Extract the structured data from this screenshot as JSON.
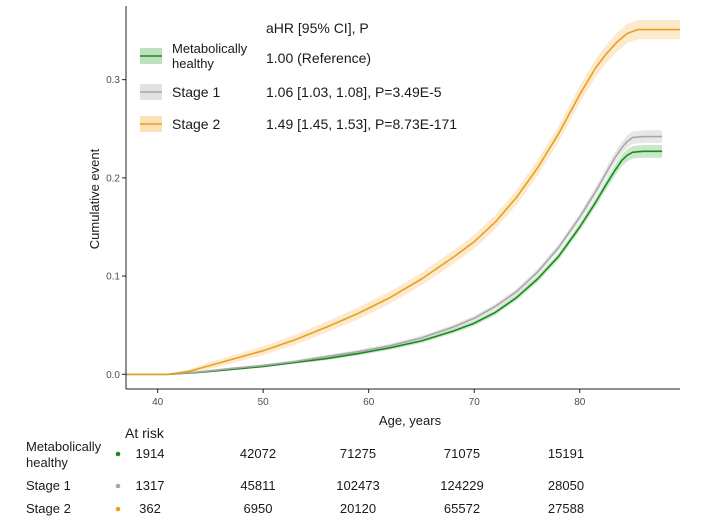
{
  "chart_data": {
    "type": "line",
    "subtype": "cumulative incidence",
    "xlabel": "Age, years",
    "ylabel": "Cumulative event",
    "xlim": [
      37,
      89.5
    ],
    "ylim": [
      -0.015,
      0.375
    ],
    "x_ticks": [
      40,
      50,
      60,
      70,
      80
    ],
    "y_ticks": [
      0.0,
      0.1,
      0.2,
      0.3
    ],
    "x_tick_labels": [
      "40",
      "50",
      "60",
      "70",
      "80"
    ],
    "y_tick_labels": [
      "0.0",
      "0.1",
      "0.2",
      "0.3"
    ],
    "grid": false,
    "legend": {
      "position": "top-left",
      "header": "aHR [95% CI], P",
      "entries": [
        {
          "name_line1": "Metabolically",
          "name_line2": "healthy",
          "ahr": "1.00 (Reference)"
        },
        {
          "name_line1": "Stage 1",
          "name_line2": "",
          "ahr": "1.06 [1.03, 1.08], P=3.49E-5"
        },
        {
          "name_line1": "Stage 2",
          "name_line2": "",
          "ahr": "1.49 [1.45, 1.53], P=8.73E-171"
        }
      ]
    },
    "series": [
      {
        "name": "Metabolically healthy",
        "color": "#1a8a1a",
        "band_color": "#9fd49f",
        "x": [
          37,
          41,
          44,
          47,
          50,
          53,
          56,
          59,
          62,
          65,
          68,
          70,
          72,
          74,
          76,
          78,
          80,
          81.5,
          82.5,
          83.3,
          84,
          84.5,
          85,
          86,
          87.8
        ],
        "values": [
          0,
          0,
          0.002,
          0.005,
          0.008,
          0.012,
          0.016,
          0.021,
          0.027,
          0.034,
          0.044,
          0.052,
          0.063,
          0.078,
          0.097,
          0.12,
          0.15,
          0.175,
          0.193,
          0.207,
          0.218,
          0.223,
          0.226,
          0.227,
          0.227
        ],
        "ci_halfwidth": [
          0,
          0,
          0.0006,
          0.001,
          0.0012,
          0.0014,
          0.0016,
          0.0018,
          0.002,
          0.0022,
          0.0024,
          0.0026,
          0.0028,
          0.003,
          0.0032,
          0.0035,
          0.004,
          0.0045,
          0.005,
          0.0055,
          0.006,
          0.0062,
          0.0064,
          0.0065,
          0.0065
        ]
      },
      {
        "name": "Stage 1",
        "color": "#a8a8a8",
        "band_color": "#d4d4d4",
        "x": [
          37,
          41,
          44,
          47,
          50,
          53,
          56,
          59,
          62,
          65,
          68,
          70,
          72,
          74,
          76,
          78,
          80,
          81.5,
          82.5,
          83.3,
          84,
          84.5,
          85,
          86,
          87.8
        ],
        "values": [
          0,
          0,
          0.0025,
          0.006,
          0.009,
          0.013,
          0.018,
          0.023,
          0.029,
          0.037,
          0.048,
          0.057,
          0.069,
          0.084,
          0.104,
          0.129,
          0.16,
          0.186,
          0.205,
          0.22,
          0.231,
          0.237,
          0.241,
          0.242,
          0.242
        ],
        "ci_halfwidth": [
          0,
          0,
          0.0006,
          0.001,
          0.0012,
          0.0014,
          0.0016,
          0.0018,
          0.002,
          0.0022,
          0.0024,
          0.0026,
          0.0028,
          0.003,
          0.0032,
          0.0035,
          0.004,
          0.0045,
          0.005,
          0.0055,
          0.006,
          0.0062,
          0.0064,
          0.0065,
          0.0065
        ]
      },
      {
        "name": "Stage 2",
        "color": "#e8a020",
        "band_color": "#fbd9a4",
        "x": [
          37,
          41,
          43,
          45,
          47,
          50,
          53,
          56,
          59,
          62,
          65,
          68,
          70,
          72,
          74,
          76,
          78,
          80,
          81.5,
          82.5,
          83.5,
          84.5,
          85.5,
          87,
          89.5
        ],
        "values": [
          0,
          0,
          0.003,
          0.009,
          0.015,
          0.024,
          0.035,
          0.048,
          0.062,
          0.078,
          0.097,
          0.119,
          0.135,
          0.155,
          0.18,
          0.21,
          0.245,
          0.285,
          0.312,
          0.326,
          0.338,
          0.347,
          0.351,
          0.351,
          0.351
        ],
        "ci_halfwidth": [
          0,
          0,
          0.002,
          0.0035,
          0.004,
          0.0045,
          0.005,
          0.0055,
          0.006,
          0.0062,
          0.0065,
          0.0068,
          0.007,
          0.0072,
          0.0075,
          0.0078,
          0.008,
          0.0085,
          0.009,
          0.0092,
          0.0095,
          0.0097,
          0.0098,
          0.0098,
          0.0098
        ]
      }
    ],
    "risk_table": {
      "title": "At risk",
      "x": [
        40,
        50,
        60,
        70,
        80
      ],
      "rows": [
        {
          "label_line1": "Metabolically",
          "label_line2": "healthy",
          "color": "#1a8a1a",
          "counts": [
            "1914",
            "42072",
            "71275",
            "71075",
            "15191"
          ]
        },
        {
          "label_line1": "Stage 1",
          "label_line2": "",
          "color": "#a8a8a8",
          "counts": [
            "1317",
            "45811",
            "102473",
            "124229",
            "28050"
          ]
        },
        {
          "label_line1": "Stage 2",
          "label_line2": "",
          "color": "#e8a020",
          "counts": [
            "362",
            "6950",
            "20120",
            "65572",
            "27588"
          ]
        }
      ]
    }
  }
}
